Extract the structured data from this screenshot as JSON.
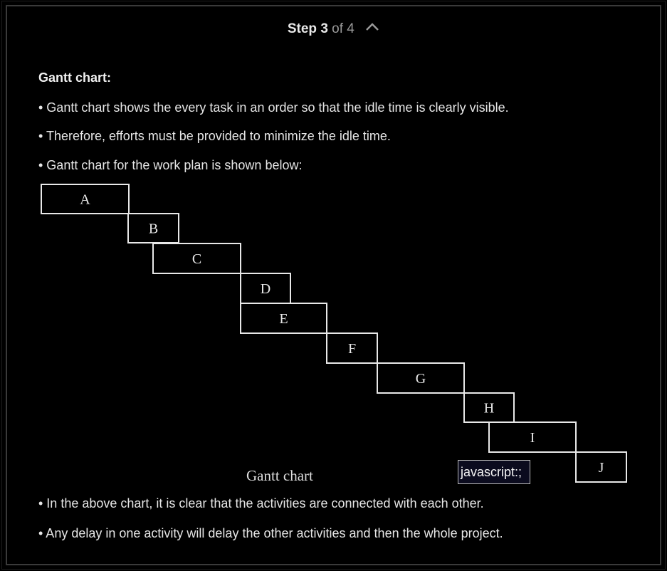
{
  "header": {
    "step_label": "Step",
    "step_current": "3",
    "step_of": "of 4"
  },
  "content": {
    "heading": "Gantt chart:",
    "bullets_top": [
      "• Gantt chart shows the every task in an order so that the idle time is clearly visible.",
      "• Therefore, efforts must be provided to minimize the idle time.",
      "• Gantt chart for the work plan is shown below:"
    ],
    "bullets_bottom": [
      "• In the above chart, it is clear that the activities are connected with each other.",
      "• Any delay in one activity will delay the other activities and then the whole project."
    ]
  },
  "figure": {
    "caption": "Gantt chart"
  },
  "tooltip": {
    "text": "javascript:;"
  },
  "chart_data": {
    "type": "gantt",
    "tasks": [
      "A",
      "B",
      "C",
      "D",
      "E",
      "F",
      "G",
      "H",
      "I",
      "J"
    ]
  }
}
